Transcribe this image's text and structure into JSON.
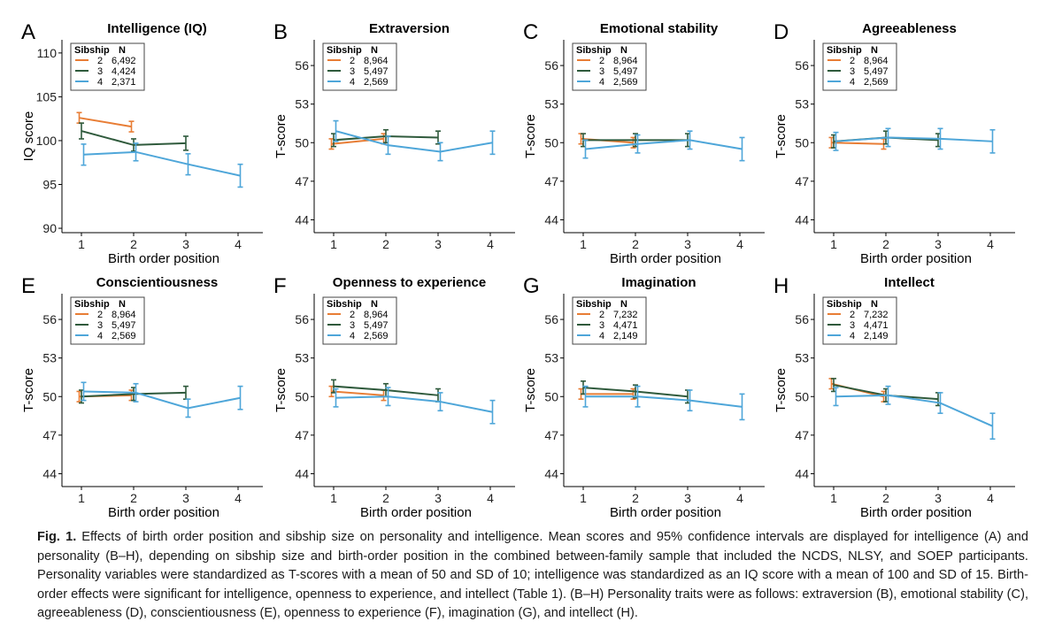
{
  "colors": {
    "sib2": "#e87d35",
    "sib3": "#2f5a3c",
    "sib4": "#4ea6d9"
  },
  "caption": {
    "label": "Fig. 1.",
    "text": "Effects of birth order position and sibship size on personality and intelligence. Mean scores and 95% confidence intervals are displayed for intelligence (A) and personality (B–H), depending on sibship size and birth-order position in the combined between-family sample that included the NCDS, NLSY, and SOEP participants. Personality variables were standardized as T-scores with a mean of 50 and SD of 10; intelligence was standardized as an IQ score with a mean of 100 and SD of 15. Birth-order effects were significant for intelligence, openness to experience, and intellect (Table 1). (B–H) Personality traits were as follows: extraversion (B), emotional stability (C), agreeableness (D), conscientiousness (E), openness to experience (F), imagination (G), and intellect (H)."
  },
  "chart_data": [
    {
      "panel": "A",
      "title": "Intelligence (IQ)",
      "type": "line",
      "xlabel": "Birth order position",
      "ylabel": "IQ score",
      "ylim": [
        89.5,
        111.5
      ],
      "yticks": [
        90,
        95,
        100,
        105,
        110
      ],
      "xticks": [
        1,
        2,
        3,
        4
      ],
      "legend": {
        "header": [
          "Sibship",
          "N"
        ],
        "entries": [
          {
            "name": "2",
            "n": "6,492"
          },
          {
            "name": "3",
            "n": "4,424"
          },
          {
            "name": "4",
            "n": "2,371"
          }
        ]
      },
      "series": [
        {
          "name": "2",
          "x": [
            1,
            2
          ],
          "y": [
            102.6,
            101.6
          ],
          "ci": [
            0.6,
            0.6
          ]
        },
        {
          "name": "3",
          "x": [
            1,
            2,
            3
          ],
          "y": [
            101.1,
            99.5,
            99.7
          ],
          "ci": [
            0.9,
            0.7,
            0.8
          ]
        },
        {
          "name": "4",
          "x": [
            1,
            2,
            3,
            4
          ],
          "y": [
            98.4,
            98.7,
            97.3,
            96.0
          ],
          "ci": [
            1.2,
            1.0,
            1.2,
            1.3
          ]
        }
      ]
    },
    {
      "panel": "B",
      "title": "Extraversion",
      "type": "line",
      "xlabel": "",
      "ylabel": "T-score",
      "ylim": [
        43,
        58
      ],
      "yticks": [
        44,
        47,
        50,
        53,
        56
      ],
      "xticks": [
        1,
        2,
        3,
        4
      ],
      "legend": {
        "header": [
          "Sibship",
          "N"
        ],
        "entries": [
          {
            "name": "2",
            "n": "8,964"
          },
          {
            "name": "3",
            "n": "5,497"
          },
          {
            "name": "4",
            "n": "2,569"
          }
        ]
      },
      "series": [
        {
          "name": "2",
          "x": [
            1,
            2
          ],
          "y": [
            49.9,
            50.3
          ],
          "ci": [
            0.4,
            0.4
          ]
        },
        {
          "name": "3",
          "x": [
            1,
            2,
            3
          ],
          "y": [
            50.2,
            50.5,
            50.4
          ],
          "ci": [
            0.5,
            0.5,
            0.5
          ]
        },
        {
          "name": "4",
          "x": [
            1,
            2,
            3,
            4
          ],
          "y": [
            50.9,
            49.8,
            49.3,
            50.0
          ],
          "ci": [
            0.8,
            0.7,
            0.7,
            0.9
          ]
        }
      ]
    },
    {
      "panel": "C",
      "title": "Emotional stability",
      "type": "line",
      "xlabel": "Birth order position",
      "ylabel": "T-score",
      "ylim": [
        43,
        58
      ],
      "yticks": [
        44,
        47,
        50,
        53,
        56
      ],
      "xticks": [
        1,
        2,
        3,
        4
      ],
      "legend": {
        "header": [
          "Sibship",
          "N"
        ],
        "entries": [
          {
            "name": "2",
            "n": "8,964"
          },
          {
            "name": "3",
            "n": "5,497"
          },
          {
            "name": "4",
            "n": "2,569"
          }
        ]
      },
      "series": [
        {
          "name": "2",
          "x": [
            1,
            2
          ],
          "y": [
            50.3,
            50.0
          ],
          "ci": [
            0.4,
            0.4
          ]
        },
        {
          "name": "3",
          "x": [
            1,
            2,
            3
          ],
          "y": [
            50.2,
            50.2,
            50.2
          ],
          "ci": [
            0.5,
            0.5,
            0.5
          ]
        },
        {
          "name": "4",
          "x": [
            1,
            2,
            3,
            4
          ],
          "y": [
            49.5,
            49.9,
            50.2,
            49.5
          ],
          "ci": [
            0.7,
            0.7,
            0.7,
            0.9
          ]
        }
      ]
    },
    {
      "panel": "D",
      "title": "Agreeableness",
      "type": "line",
      "xlabel": "Birth order position",
      "ylabel": "T-score",
      "ylim": [
        43,
        58
      ],
      "yticks": [
        44,
        47,
        50,
        53,
        56
      ],
      "xticks": [
        1,
        2,
        3,
        4
      ],
      "legend": {
        "header": [
          "Sibship",
          "N"
        ],
        "entries": [
          {
            "name": "2",
            "n": "8,964"
          },
          {
            "name": "3",
            "n": "5,497"
          },
          {
            "name": "4",
            "n": "2,569"
          }
        ]
      },
      "series": [
        {
          "name": "2",
          "x": [
            1,
            2
          ],
          "y": [
            50.0,
            49.9
          ],
          "ci": [
            0.4,
            0.4
          ]
        },
        {
          "name": "3",
          "x": [
            1,
            2,
            3
          ],
          "y": [
            50.1,
            50.4,
            50.2
          ],
          "ci": [
            0.5,
            0.5,
            0.5
          ]
        },
        {
          "name": "4",
          "x": [
            1,
            2,
            3,
            4
          ],
          "y": [
            50.1,
            50.4,
            50.3,
            50.1
          ],
          "ci": [
            0.7,
            0.7,
            0.8,
            0.9
          ]
        }
      ]
    },
    {
      "panel": "E",
      "title": "Conscientiousness",
      "type": "line",
      "xlabel": "Birth order position",
      "ylabel": "T-score",
      "ylim": [
        43,
        58
      ],
      "yticks": [
        44,
        47,
        50,
        53,
        56
      ],
      "xticks": [
        1,
        2,
        3,
        4
      ],
      "legend": {
        "header": [
          "Sibship",
          "N"
        ],
        "entries": [
          {
            "name": "2",
            "n": "8,964"
          },
          {
            "name": "3",
            "n": "5,497"
          },
          {
            "name": "4",
            "n": "2,569"
          }
        ]
      },
      "series": [
        {
          "name": "2",
          "x": [
            1,
            2
          ],
          "y": [
            50.0,
            50.1
          ],
          "ci": [
            0.4,
            0.4
          ]
        },
        {
          "name": "3",
          "x": [
            1,
            2,
            3
          ],
          "y": [
            50.0,
            50.2,
            50.3
          ],
          "ci": [
            0.5,
            0.5,
            0.5
          ]
        },
        {
          "name": "4",
          "x": [
            1,
            2,
            3,
            4
          ],
          "y": [
            50.4,
            50.3,
            49.1,
            49.9
          ],
          "ci": [
            0.7,
            0.7,
            0.7,
            0.9
          ]
        }
      ]
    },
    {
      "panel": "F",
      "title": "Openness to experience",
      "type": "line",
      "xlabel": "Birth order position",
      "ylabel": "T-score",
      "ylim": [
        43,
        58
      ],
      "yticks": [
        44,
        47,
        50,
        53,
        56
      ],
      "xticks": [
        1,
        2,
        3,
        4
      ],
      "legend": {
        "header": [
          "Sibship",
          "N"
        ],
        "entries": [
          {
            "name": "2",
            "n": "8,964"
          },
          {
            "name": "3",
            "n": "5,497"
          },
          {
            "name": "4",
            "n": "2,569"
          }
        ]
      },
      "series": [
        {
          "name": "2",
          "x": [
            1,
            2
          ],
          "y": [
            50.4,
            50.1
          ],
          "ci": [
            0.4,
            0.4
          ]
        },
        {
          "name": "3",
          "x": [
            1,
            2,
            3
          ],
          "y": [
            50.8,
            50.5,
            50.1
          ],
          "ci": [
            0.5,
            0.5,
            0.5
          ]
        },
        {
          "name": "4",
          "x": [
            1,
            2,
            3,
            4
          ],
          "y": [
            49.9,
            50.0,
            49.6,
            48.8
          ],
          "ci": [
            0.7,
            0.7,
            0.7,
            0.9
          ]
        }
      ]
    },
    {
      "panel": "G",
      "title": "Imagination",
      "type": "line",
      "xlabel": "Birth order position",
      "ylabel": "T-score",
      "ylim": [
        43,
        58
      ],
      "yticks": [
        44,
        47,
        50,
        53,
        56
      ],
      "xticks": [
        1,
        2,
        3,
        4
      ],
      "legend": {
        "header": [
          "Sibship",
          "N"
        ],
        "entries": [
          {
            "name": "2",
            "n": "7,232"
          },
          {
            "name": "3",
            "n": "4,471"
          },
          {
            "name": "4",
            "n": "2,149"
          }
        ]
      },
      "series": [
        {
          "name": "2",
          "x": [
            1,
            2
          ],
          "y": [
            50.2,
            50.2
          ],
          "ci": [
            0.4,
            0.4
          ]
        },
        {
          "name": "3",
          "x": [
            1,
            2,
            3
          ],
          "y": [
            50.7,
            50.4,
            50.0
          ],
          "ci": [
            0.5,
            0.5,
            0.5
          ]
        },
        {
          "name": "4",
          "x": [
            1,
            2,
            3,
            4
          ],
          "y": [
            50.0,
            50.0,
            49.7,
            49.2
          ],
          "ci": [
            0.8,
            0.8,
            0.8,
            1.0
          ]
        }
      ]
    },
    {
      "panel": "H",
      "title": "Intellect",
      "type": "line",
      "xlabel": "Birth order position",
      "ylabel": "T-score",
      "ylim": [
        43,
        58
      ],
      "yticks": [
        44,
        47,
        50,
        53,
        56
      ],
      "xticks": [
        1,
        2,
        3,
        4
      ],
      "legend": {
        "header": [
          "Sibship",
          "N"
        ],
        "entries": [
          {
            "name": "2",
            "n": "7,232"
          },
          {
            "name": "3",
            "n": "4,471"
          },
          {
            "name": "4",
            "n": "2,149"
          }
        ]
      },
      "series": [
        {
          "name": "2",
          "x": [
            1,
            2
          ],
          "y": [
            51.0,
            50.0
          ],
          "ci": [
            0.4,
            0.4
          ]
        },
        {
          "name": "3",
          "x": [
            1,
            2,
            3
          ],
          "y": [
            50.9,
            50.1,
            49.8
          ],
          "ci": [
            0.5,
            0.5,
            0.5
          ]
        },
        {
          "name": "4",
          "x": [
            1,
            2,
            3,
            4
          ],
          "y": [
            50.0,
            50.1,
            49.5,
            47.7
          ],
          "ci": [
            0.7,
            0.7,
            0.8,
            1.0
          ]
        }
      ]
    }
  ]
}
